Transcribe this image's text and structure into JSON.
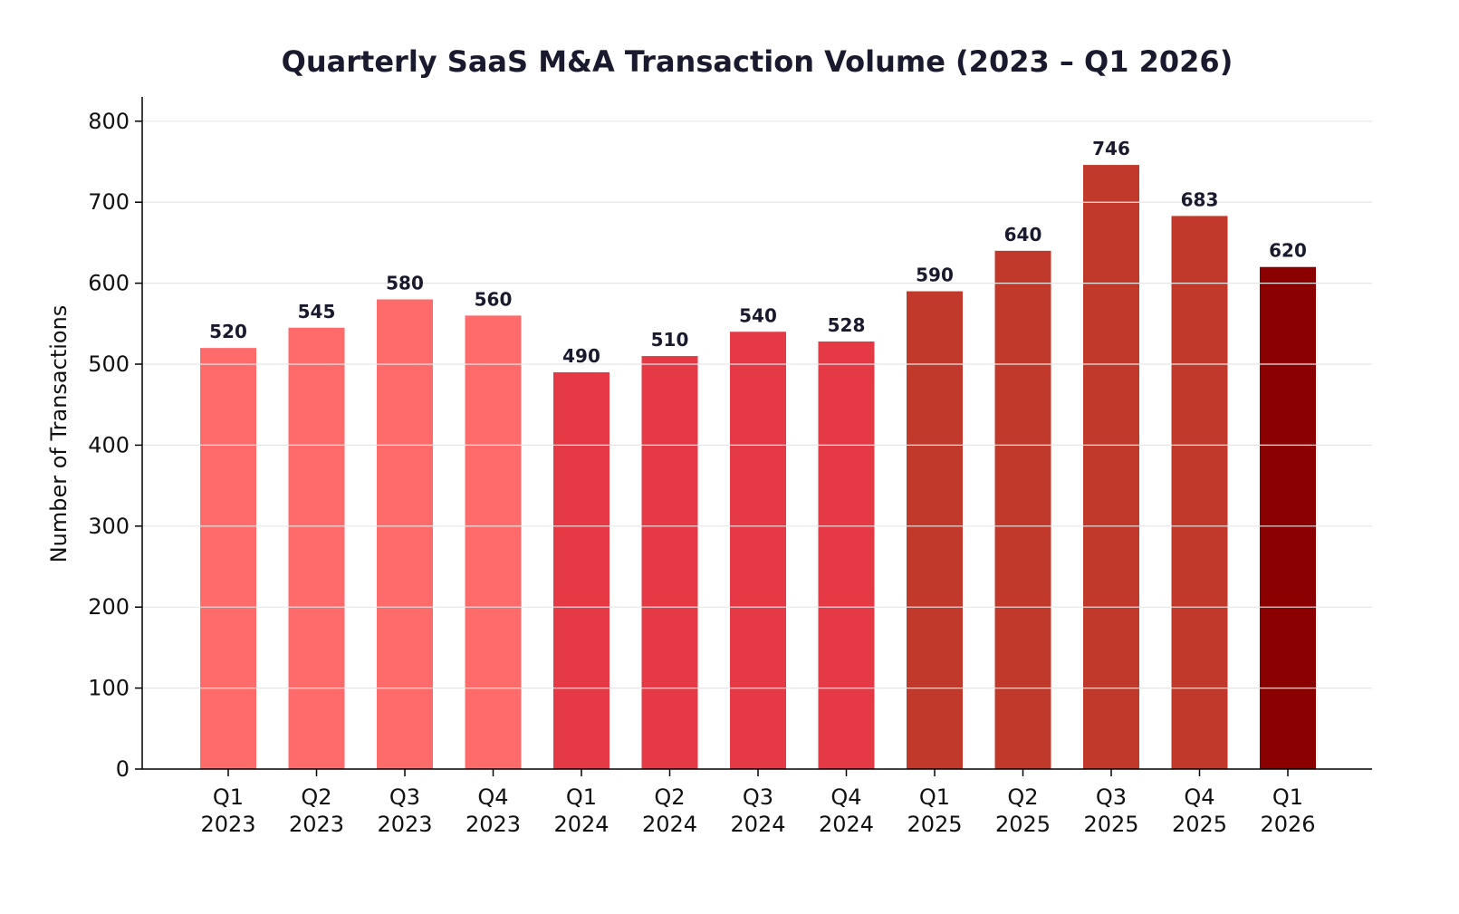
{
  "chart_data": {
    "type": "bar",
    "title": "Quarterly SaaS M&A Transaction Volume (2023 – Q1 2026)",
    "xlabel": "",
    "ylabel": "Number of Transactions",
    "ylim": [
      0,
      830
    ],
    "yticks": [
      0,
      100,
      200,
      300,
      400,
      500,
      600,
      700,
      800
    ],
    "grid": "horizontal",
    "categories": [
      [
        "Q1",
        "2023"
      ],
      [
        "Q2",
        "2023"
      ],
      [
        "Q3",
        "2023"
      ],
      [
        "Q4",
        "2023"
      ],
      [
        "Q1",
        "2024"
      ],
      [
        "Q2",
        "2024"
      ],
      [
        "Q3",
        "2024"
      ],
      [
        "Q4",
        "2024"
      ],
      [
        "Q1",
        "2025"
      ],
      [
        "Q2",
        "2025"
      ],
      [
        "Q3",
        "2025"
      ],
      [
        "Q4",
        "2025"
      ],
      [
        "Q1",
        "2026"
      ]
    ],
    "values": [
      520,
      545,
      580,
      560,
      490,
      510,
      540,
      528,
      590,
      640,
      746,
      683,
      620
    ],
    "year_colors": {
      "2023": "#FF6B6B",
      "2024": "#E63946",
      "2025": "#C0392B",
      "2026": "#8B0000"
    },
    "label_color": "#1a1a2e"
  }
}
